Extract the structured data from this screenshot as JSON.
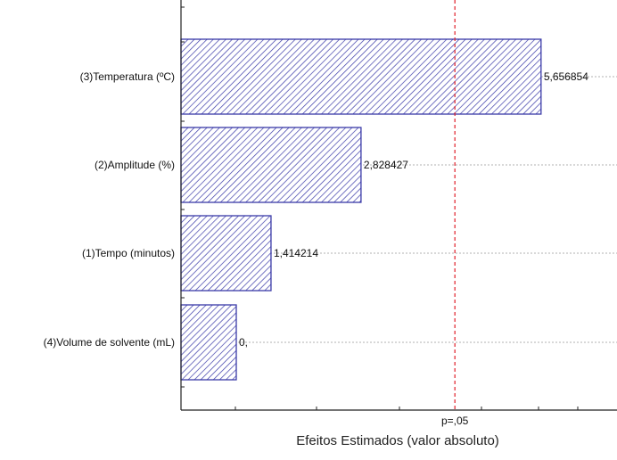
{
  "chart_data": {
    "type": "bar",
    "orientation": "horizontal",
    "categories": [
      "(3)Temperatura (ºC)",
      "(2)Amplitude (%)",
      "(1)Tempo (minutos)",
      "(4)Volume de solvente (mL)"
    ],
    "values": [
      5.656854,
      2.828427,
      1.414214,
      0
    ],
    "value_labels": [
      "5,656854",
      "2,828427",
      "1,414214",
      "0,"
    ],
    "reference_line": {
      "label": "p=,05",
      "value": 4.303,
      "style": "dashed",
      "color": "#e0202a"
    },
    "xlabel": "Efeitos Estimados (valor absoluto)",
    "ylabel": "",
    "xlim": [
      0,
      6.85
    ],
    "grid": "horizontal dotted",
    "bar_color": "#3a3aa8",
    "bar_fill": "diagonal-hatch"
  }
}
